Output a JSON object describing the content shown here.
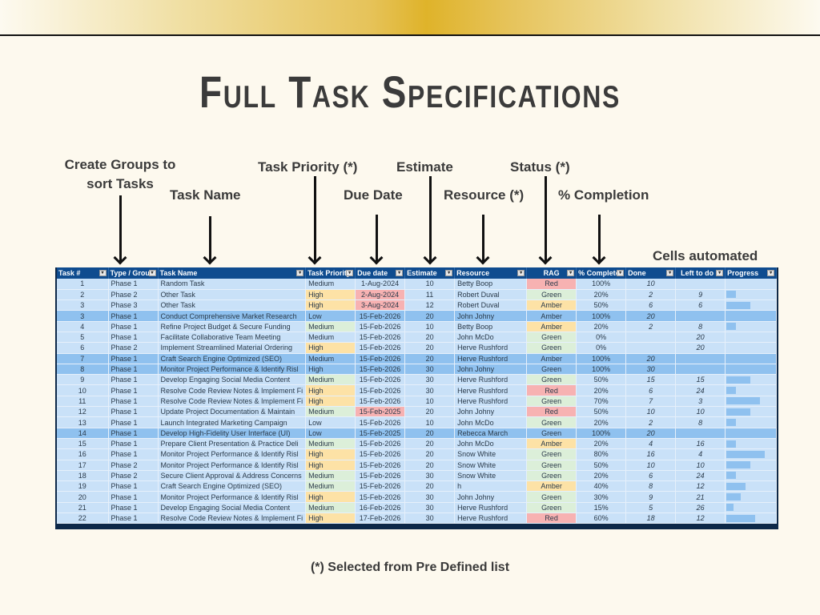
{
  "title": "Full Task Specifications",
  "annotations": {
    "groups": "Create Groups to",
    "groups_line2": "sort Tasks",
    "task_name": "Task Name",
    "task_priority": "Task Priority (*)",
    "due_date": "Due Date",
    "estimate": "Estimate",
    "resource": "Resource (*)",
    "status": "Status (*)",
    "completion": "% Completion",
    "cells_automated": "Cells automated"
  },
  "footnote": "(*) Selected from Pre Defined list",
  "table": {
    "headers": [
      "Task #",
      "Type / Grou",
      "Task Name",
      "Task Priority",
      "Due date",
      "Estimate",
      "Resource",
      "RAG",
      "% Complete",
      "Done",
      "Left to do",
      "Progress"
    ],
    "rows": [
      {
        "num": "1",
        "group": "Phase 1",
        "name": "Random Task",
        "priority": "Medium",
        "due": "1-Aug-2024",
        "est": "10",
        "res": "Betty Boop",
        "rag": "Red",
        "pct": "100%",
        "done": "10",
        "left": "",
        "progress": 100,
        "band": false,
        "late": false
      },
      {
        "num": "2",
        "group": "Phase 2",
        "name": "Other Task",
        "priority": "High",
        "due": "2-Aug-2024",
        "est": "11",
        "res": "Robert Duval",
        "rag": "Green",
        "pct": "20%",
        "done": "2",
        "left": "9",
        "progress": 20,
        "band": false,
        "late": true
      },
      {
        "num": "3",
        "group": "Phase 3",
        "name": "Other Task",
        "priority": "High",
        "due": "3-Aug-2024",
        "est": "12",
        "res": "Robert Duval",
        "rag": "Amber",
        "pct": "50%",
        "done": "6",
        "left": "6",
        "progress": 50,
        "band": false,
        "late": true
      },
      {
        "num": "3",
        "group": "Phase 1",
        "name": "Conduct Comprehensive Market Research",
        "priority": "Low",
        "due": "15-Feb-2026",
        "est": "20",
        "res": "John Johny",
        "rag": "Amber",
        "pct": "100%",
        "done": "20",
        "left": "",
        "progress": 100,
        "band": true,
        "late": false
      },
      {
        "num": "4",
        "group": "Phase 1",
        "name": "Refine Project Budget & Secure Funding",
        "priority": "Medium",
        "due": "15-Feb-2026",
        "est": "10",
        "res": "Betty Boop",
        "rag": "Amber",
        "pct": "20%",
        "done": "2",
        "left": "8",
        "progress": 20,
        "band": false,
        "late": false
      },
      {
        "num": "5",
        "group": "Phase 1",
        "name": "Facilitate Collaborative Team Meeting",
        "priority": "Medium",
        "due": "15-Feb-2026",
        "est": "20",
        "res": "John McDo",
        "rag": "Green",
        "pct": "0%",
        "done": "",
        "left": "20",
        "progress": 0,
        "band": false,
        "late": false
      },
      {
        "num": "6",
        "group": "Phase 2",
        "name": "Implement Streamlined Material Ordering",
        "priority": "High",
        "due": "15-Feb-2026",
        "est": "20",
        "res": "Herve Rushford",
        "rag": "Green",
        "pct": "0%",
        "done": "",
        "left": "20",
        "progress": 0,
        "band": false,
        "late": false
      },
      {
        "num": "7",
        "group": "Phase 1",
        "name": "Craft Search Engine Optimized (SEO)",
        "priority": "Medium",
        "due": "15-Feb-2026",
        "est": "20",
        "res": "Herve Rushford",
        "rag": "Amber",
        "pct": "100%",
        "done": "20",
        "left": "",
        "progress": 100,
        "band": true,
        "late": false
      },
      {
        "num": "8",
        "group": "Phase 1",
        "name": "Monitor Project Performance & Identify Risl",
        "priority": "High",
        "due": "15-Feb-2026",
        "est": "30",
        "res": "John Johny",
        "rag": "Green",
        "pct": "100%",
        "done": "30",
        "left": "",
        "progress": 100,
        "band": true,
        "late": false
      },
      {
        "num": "9",
        "group": "Phase 1",
        "name": "Develop Engaging Social Media Content",
        "priority": "Medium",
        "due": "15-Feb-2026",
        "est": "30",
        "res": "Herve Rushford",
        "rag": "Green",
        "pct": "50%",
        "done": "15",
        "left": "15",
        "progress": 50,
        "band": false,
        "late": false
      },
      {
        "num": "10",
        "group": "Phase 1",
        "name": "Resolve Code Review Notes & Implement Fi",
        "priority": "High",
        "due": "15-Feb-2026",
        "est": "30",
        "res": "Herve Rushford",
        "rag": "Red",
        "pct": "20%",
        "done": "6",
        "left": "24",
        "progress": 20,
        "band": false,
        "late": false
      },
      {
        "num": "11",
        "group": "Phase 1",
        "name": "Resolve Code Review Notes & Implement Fi",
        "priority": "High",
        "due": "15-Feb-2026",
        "est": "10",
        "res": "Herve Rushford",
        "rag": "Green",
        "pct": "70%",
        "done": "7",
        "left": "3",
        "progress": 70,
        "band": false,
        "late": false
      },
      {
        "num": "12",
        "group": "Phase 1",
        "name": "Update Project Documentation & Maintain",
        "priority": "Medium",
        "due": "15-Feb-2025",
        "est": "20",
        "res": "John Johny",
        "rag": "Red",
        "pct": "50%",
        "done": "10",
        "left": "10",
        "progress": 50,
        "band": false,
        "late": true
      },
      {
        "num": "13",
        "group": "Phase 1",
        "name": "Launch Integrated Marketing Campaign",
        "priority": "Low",
        "due": "15-Feb-2026",
        "est": "10",
        "res": "John McDo",
        "rag": "Green",
        "pct": "20%",
        "done": "2",
        "left": "8",
        "progress": 20,
        "band": false,
        "late": false
      },
      {
        "num": "14",
        "group": "Phase 1",
        "name": "Develop High-Fidelity User Interface (UI)",
        "priority": "Low",
        "due": "15-Feb-2025",
        "est": "20",
        "res": "Rebecca March",
        "rag": "Green",
        "pct": "100%",
        "done": "20",
        "left": "",
        "progress": 100,
        "band": true,
        "late": false
      },
      {
        "num": "15",
        "group": "Phase 1",
        "name": "Prepare Client Presentation & Practice Deli",
        "priority": "Medium",
        "due": "15-Feb-2026",
        "est": "20",
        "res": "John McDo",
        "rag": "Amber",
        "pct": "20%",
        "done": "4",
        "left": "16",
        "progress": 20,
        "band": false,
        "late": false
      },
      {
        "num": "16",
        "group": "Phase 1",
        "name": "Monitor Project Performance & Identify Risl",
        "priority": "High",
        "due": "15-Feb-2026",
        "est": "20",
        "res": "Snow White",
        "rag": "Green",
        "pct": "80%",
        "done": "16",
        "left": "4",
        "progress": 80,
        "band": false,
        "late": false
      },
      {
        "num": "17",
        "group": "Phase 2",
        "name": "Monitor Project Performance & Identify Risl",
        "priority": "High",
        "due": "15-Feb-2026",
        "est": "20",
        "res": "Snow White",
        "rag": "Green",
        "pct": "50%",
        "done": "10",
        "left": "10",
        "progress": 50,
        "band": false,
        "late": false
      },
      {
        "num": "18",
        "group": "Phase 2",
        "name": "Secure Client Approval & Address Concerns",
        "priority": "Medium",
        "due": "15-Feb-2026",
        "est": "30",
        "res": "Snow White",
        "rag": "Green",
        "pct": "20%",
        "done": "6",
        "left": "24",
        "progress": 20,
        "band": false,
        "late": false
      },
      {
        "num": "19",
        "group": "Phase 1",
        "name": "Craft Search Engine Optimized (SEO)",
        "priority": "Medium",
        "due": "15-Feb-2026",
        "est": "20",
        "res": "h",
        "rag": "Amber",
        "pct": "40%",
        "done": "8",
        "left": "12",
        "progress": 40,
        "band": false,
        "late": false
      },
      {
        "num": "20",
        "group": "Phase 1",
        "name": "Monitor Project Performance & Identify Risl",
        "priority": "High",
        "due": "15-Feb-2026",
        "est": "30",
        "res": "John Johny",
        "rag": "Green",
        "pct": "30%",
        "done": "9",
        "left": "21",
        "progress": 30,
        "band": false,
        "late": false
      },
      {
        "num": "21",
        "group": "Phase 1",
        "name": "Develop Engaging Social Media Content",
        "priority": "Medium",
        "due": "16-Feb-2026",
        "est": "30",
        "res": "Herve Rushford",
        "rag": "Green",
        "pct": "15%",
        "done": "5",
        "left": "26",
        "progress": 15,
        "band": false,
        "late": false
      },
      {
        "num": "22",
        "group": "Phase 1",
        "name": "Resolve Code Review Notes & Implement Fi",
        "priority": "High",
        "due": "17-Feb-2026",
        "est": "30",
        "res": "Herve Rushford",
        "rag": "Red",
        "pct": "60%",
        "done": "18",
        "left": "12",
        "progress": 60,
        "band": false,
        "late": false
      }
    ]
  },
  "colors": {
    "header": "#0f4c8f",
    "row": "#c9e1f8",
    "band": "#8fc1ef",
    "red": "#f7b2b2",
    "amber": "#fde2a6",
    "green": "#dcefd9",
    "gold": "#dfb32a"
  }
}
